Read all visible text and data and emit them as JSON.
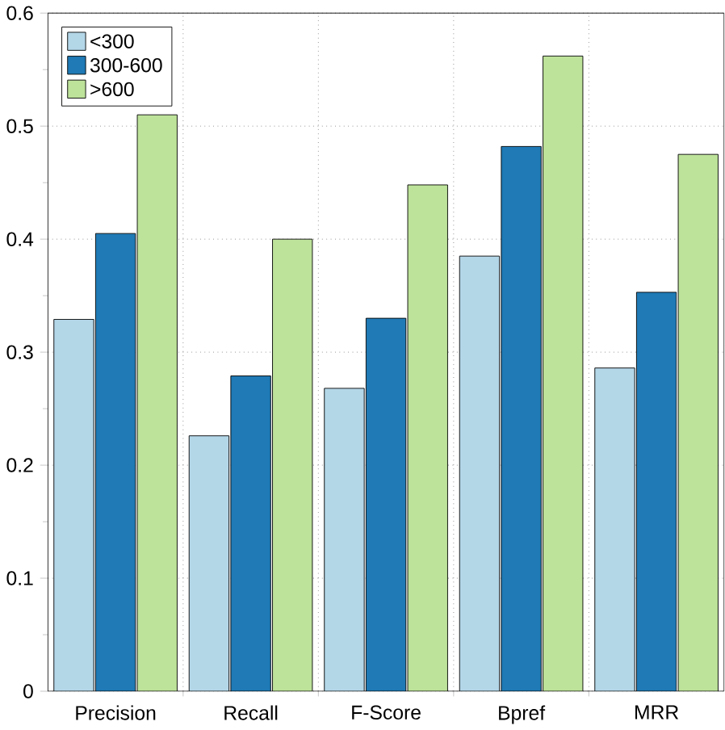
{
  "chart_data": {
    "type": "bar",
    "categories": [
      "Precision",
      "Recall",
      "F-Score",
      "Bpref",
      "MRR"
    ],
    "series": [
      {
        "name": "<300",
        "color": "#b4d7e8",
        "values": [
          0.329,
          0.226,
          0.268,
          0.385,
          0.286
        ]
      },
      {
        "name": "300-600",
        "color": "#1f7ab5",
        "values": [
          0.405,
          0.279,
          0.33,
          0.482,
          0.353
        ]
      },
      {
        "name": ">600",
        "color": "#bde29a",
        "values": [
          0.51,
          0.4,
          0.448,
          0.562,
          0.475
        ]
      }
    ],
    "ylim": [
      0,
      0.6
    ],
    "yticks": [
      0,
      0.1,
      0.2,
      0.3,
      0.4,
      0.5,
      0.6
    ],
    "grid": true,
    "legend": "top left"
  }
}
